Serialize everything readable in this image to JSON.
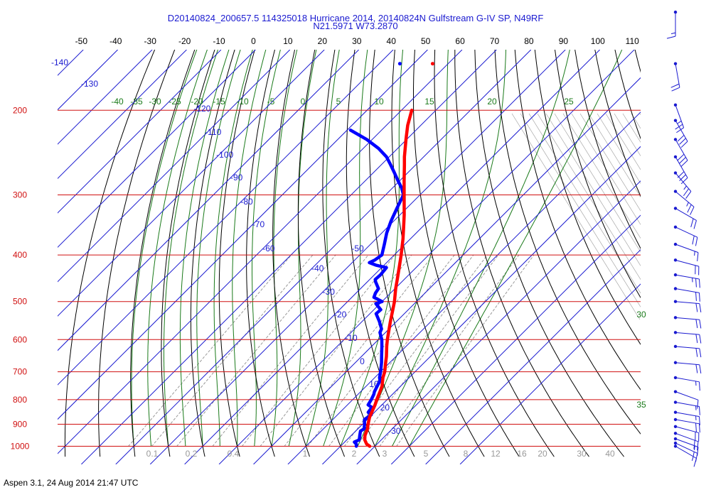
{
  "header": {
    "title": "D20140824_200657.5 114325018 Hurricane 2014, 20140824N Gulfstream G-IV SP, N49RF",
    "subtitle": "N21.5971 W73.2870"
  },
  "footer": {
    "text": "Aspen 3.1, 24 Aug 2014  21:47 UTC"
  },
  "colors": {
    "isobar": "#d01010",
    "isotherm": "#1a1ad0",
    "dry_adiabat": "#000000",
    "moist_adiabat": "#1a7a1a",
    "mixing_ratio": "#999999",
    "temperature": "#ff0000",
    "dewpoint": "#0000ff",
    "wind_barb": "#1a1ad0",
    "axis_text": "#000000"
  },
  "chart_data": {
    "type": "skew-t",
    "title": "D20140824_200657.5 114325018 Hurricane 2014, 20140824N Gulfstream G-IV SP, N49RF",
    "subtitle": "N21.5971 W73.2870",
    "top_axis_ticks": [
      "-50",
      "-40",
      "-30",
      "-20",
      "-10",
      "0",
      "10",
      "20",
      "30",
      "40",
      "50",
      "60",
      "70",
      "80",
      "90",
      "100",
      "110"
    ],
    "pressure_levels": [
      {
        "p": 200,
        "label": "200"
      },
      {
        "p": 300,
        "label": "300"
      },
      {
        "p": 400,
        "label": "400"
      },
      {
        "p": 500,
        "label": "500"
      },
      {
        "p": 600,
        "label": "600"
      },
      {
        "p": 700,
        "label": "700"
      },
      {
        "p": 800,
        "label": "800"
      },
      {
        "p": 900,
        "label": "900"
      },
      {
        "p": 1000,
        "label": "1000"
      }
    ],
    "isotherm_labels": [
      "-140",
      "-130",
      "-120",
      "-110",
      "-100",
      "-90",
      "-80",
      "-70",
      "-60",
      "-50",
      "-40",
      "-30",
      "-20",
      "-10",
      "0",
      "10",
      "20",
      "30"
    ],
    "moist_adiabat_labels": [
      "-40",
      "-35",
      "-30",
      "-25",
      "-20",
      "-15",
      "-10",
      "-5",
      "0",
      "5",
      "10",
      "15",
      "20",
      "25",
      "30",
      "35"
    ],
    "mixing_ratio_labels": [
      "0.1",
      "0.2",
      "0.4",
      "1",
      "2",
      "3",
      "5",
      "8",
      "12",
      "16",
      "20",
      "30",
      "40"
    ],
    "temperature_profile": [
      {
        "p": 1000,
        "t": 28.5
      },
      {
        "p": 990,
        "t": 27.0
      },
      {
        "p": 970,
        "t": 25.2
      },
      {
        "p": 950,
        "t": 24.0
      },
      {
        "p": 920,
        "t": 22.8
      },
      {
        "p": 900,
        "t": 21.6
      },
      {
        "p": 870,
        "t": 20.0
      },
      {
        "p": 850,
        "t": 19.2
      },
      {
        "p": 820,
        "t": 18.0
      },
      {
        "p": 800,
        "t": 17.0
      },
      {
        "p": 770,
        "t": 15.6
      },
      {
        "p": 750,
        "t": 14.6
      },
      {
        "p": 720,
        "t": 12.4
      },
      {
        "p": 700,
        "t": 11.2
      },
      {
        "p": 670,
        "t": 8.8
      },
      {
        "p": 650,
        "t": 7.2
      },
      {
        "p": 620,
        "t": 4.4
      },
      {
        "p": 600,
        "t": 2.6
      },
      {
        "p": 570,
        "t": 0.0
      },
      {
        "p": 550,
        "t": -1.8
      },
      {
        "p": 520,
        "t": -4.5
      },
      {
        "p": 500,
        "t": -6.4
      },
      {
        "p": 470,
        "t": -9.8
      },
      {
        "p": 450,
        "t": -12.0
      },
      {
        "p": 420,
        "t": -15.5
      },
      {
        "p": 400,
        "t": -18.0
      },
      {
        "p": 370,
        "t": -22.2
      },
      {
        "p": 350,
        "t": -25.4
      },
      {
        "p": 330,
        "t": -28.8
      },
      {
        "p": 300,
        "t": -34.6
      },
      {
        "p": 280,
        "t": -38.8
      },
      {
        "p": 260,
        "t": -43.2
      },
      {
        "p": 250,
        "t": -45.6
      },
      {
        "p": 230,
        "t": -50.2
      },
      {
        "p": 215,
        "t": -53.8
      },
      {
        "p": 200,
        "t": -57.0
      }
    ],
    "dewpoint_profile": [
      {
        "p": 1000,
        "td": 24.6
      },
      {
        "p": 990,
        "td": 24.0
      },
      {
        "p": 980,
        "td": 22.8
      },
      {
        "p": 970,
        "td": 23.6
      },
      {
        "p": 950,
        "td": 22.5
      },
      {
        "p": 930,
        "td": 21.4
      },
      {
        "p": 920,
        "td": 21.8
      },
      {
        "p": 900,
        "td": 20.6
      },
      {
        "p": 880,
        "td": 19.2
      },
      {
        "p": 860,
        "td": 19.8
      },
      {
        "p": 850,
        "td": 18.2
      },
      {
        "p": 830,
        "td": 17.8
      },
      {
        "p": 820,
        "td": 16.0
      },
      {
        "p": 800,
        "td": 15.4
      },
      {
        "p": 780,
        "td": 14.6
      },
      {
        "p": 770,
        "td": 14.0
      },
      {
        "p": 750,
        "td": 13.2
      },
      {
        "p": 730,
        "td": 12.4
      },
      {
        "p": 720,
        "td": 11.4
      },
      {
        "p": 700,
        "td": 10.0
      },
      {
        "p": 670,
        "td": 7.6
      },
      {
        "p": 650,
        "td": 5.8
      },
      {
        "p": 620,
        "td": 3.0
      },
      {
        "p": 600,
        "td": 1.0
      },
      {
        "p": 580,
        "td": -1.6
      },
      {
        "p": 570,
        "td": -2.2
      },
      {
        "p": 550,
        "td": -5.0
      },
      {
        "p": 530,
        "td": -8.2
      },
      {
        "p": 520,
        "td": -8.0
      },
      {
        "p": 505,
        "td": -11.2
      },
      {
        "p": 500,
        "td": -10.0
      },
      {
        "p": 490,
        "td": -13.6
      },
      {
        "p": 480,
        "td": -14.4
      },
      {
        "p": 470,
        "td": -14.8
      },
      {
        "p": 455,
        "td": -17.6
      },
      {
        "p": 450,
        "td": -18.4
      },
      {
        "p": 440,
        "td": -18.2
      },
      {
        "p": 425,
        "td": -18.6
      },
      {
        "p": 420,
        "td": -22.4
      },
      {
        "p": 415,
        "td": -25.0
      },
      {
        "p": 410,
        "td": -24.2
      },
      {
        "p": 400,
        "td": -23.6
      },
      {
        "p": 380,
        "td": -26.0
      },
      {
        "p": 360,
        "td": -28.6
      },
      {
        "p": 340,
        "td": -30.8
      },
      {
        "p": 320,
        "td": -32.8
      },
      {
        "p": 310,
        "td": -33.8
      },
      {
        "p": 300,
        "td": -34.8
      },
      {
        "p": 290,
        "td": -37.4
      },
      {
        "p": 280,
        "td": -40.6
      },
      {
        "p": 270,
        "td": -43.8
      },
      {
        "p": 260,
        "td": -47.2
      },
      {
        "p": 250,
        "td": -50.8
      },
      {
        "p": 240,
        "td": -55.6
      },
      {
        "p": 230,
        "td": -61.6
      },
      {
        "p": 220,
        "td": -69.0
      }
    ],
    "extra_markers": [
      {
        "series": "dewpoint",
        "p": 160,
        "value": -74.0
      },
      {
        "series": "temperature",
        "p": 160,
        "value": -64.5
      }
    ],
    "wind_barbs": [
      {
        "p": 1000,
        "dir": 120,
        "spd": 15
      },
      {
        "p": 985,
        "dir": 115,
        "spd": 15
      },
      {
        "p": 965,
        "dir": 110,
        "spd": 15
      },
      {
        "p": 940,
        "dir": 110,
        "spd": 20
      },
      {
        "p": 910,
        "dir": 105,
        "spd": 20
      },
      {
        "p": 880,
        "dir": 100,
        "spd": 20
      },
      {
        "p": 850,
        "dir": 100,
        "spd": 15
      },
      {
        "p": 810,
        "dir": 100,
        "spd": 15
      },
      {
        "p": 770,
        "dir": 110,
        "spd": 10
      },
      {
        "p": 720,
        "dir": 100,
        "spd": 15
      },
      {
        "p": 670,
        "dir": 95,
        "spd": 20
      },
      {
        "p": 620,
        "dir": 95,
        "spd": 20
      },
      {
        "p": 580,
        "dir": 95,
        "spd": 20
      },
      {
        "p": 540,
        "dir": 95,
        "spd": 20
      },
      {
        "p": 500,
        "dir": 95,
        "spd": 20
      },
      {
        "p": 470,
        "dir": 100,
        "spd": 20
      },
      {
        "p": 440,
        "dir": 100,
        "spd": 25
      },
      {
        "p": 410,
        "dir": 105,
        "spd": 20
      },
      {
        "p": 380,
        "dir": 110,
        "spd": 15
      },
      {
        "p": 350,
        "dir": 115,
        "spd": 20
      },
      {
        "p": 320,
        "dir": 120,
        "spd": 20
      },
      {
        "p": 295,
        "dir": 130,
        "spd": 25
      },
      {
        "p": 270,
        "dir": 140,
        "spd": 25
      },
      {
        "p": 250,
        "dir": 150,
        "spd": 30
      },
      {
        "p": 230,
        "dir": 150,
        "spd": 30
      },
      {
        "p": 210,
        "dir": 150,
        "spd": 30
      },
      {
        "p": 195,
        "dir": 160,
        "spd": 25
      },
      {
        "p": 160,
        "dir": 170,
        "spd": 20
      },
      {
        "p": 125,
        "dir": 180,
        "spd": 15
      }
    ]
  }
}
